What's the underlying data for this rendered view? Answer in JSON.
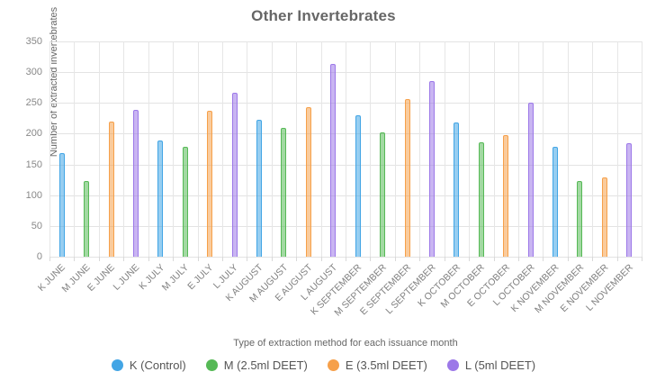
{
  "chart_data": {
    "type": "bar",
    "title": "Other Invertebrates",
    "xlabel": "Type of extraction method for each issuance month",
    "ylabel": "Number of extracted invertebrates",
    "ylim": [
      0,
      350
    ],
    "ytick_step": 50,
    "grid": true,
    "legend_position": "bottom",
    "categories": [
      "K JUNE",
      "M JUNE",
      "E JUNE",
      "L JUNE",
      "K JULY",
      "M JULY",
      "E JULY",
      "L JULY",
      "K AUGUST",
      "M AUGUST",
      "E AUGUST",
      "L AUGUST",
      "K SEPTEMBER",
      "M SEPTEMBER",
      "E SEPTEMBER",
      "L SEPTEMBER",
      "K OCTOBER",
      "M OCTOBER",
      "E OCTOBER",
      "L OCTOBER",
      "K NOVEMBER",
      "M NOVEMBER",
      "E NOVEMBER",
      "L NOVEMBER"
    ],
    "values": [
      169,
      123,
      220,
      239,
      189,
      179,
      237,
      267,
      222,
      210,
      243,
      313,
      230,
      202,
      257,
      285,
      218,
      186,
      197,
      250,
      178,
      123,
      129,
      185
    ],
    "methods": [
      {
        "key": "K",
        "label": "K (Control)",
        "border": "#42a5e5",
        "fill": "rgba(66,165,229,0.55)"
      },
      {
        "key": "M",
        "label": "M (2.5ml DEET)",
        "border": "#56b956",
        "fill": "rgba(86,185,86,0.55)"
      },
      {
        "key": "E",
        "label": "E (3.5ml DEET)",
        "border": "#f6a04a",
        "fill": "rgba(246,160,74,0.55)"
      },
      {
        "key": "L",
        "label": "L (5ml DEET)",
        "border": "#9c78e8",
        "fill": "rgba(156,120,232,0.55)"
      }
    ],
    "colors": {
      "title": "#666666",
      "axis_title": "#666666",
      "tick_label": "#888888",
      "gridline": "#e3e3e3",
      "background": "#ffffff"
    }
  }
}
